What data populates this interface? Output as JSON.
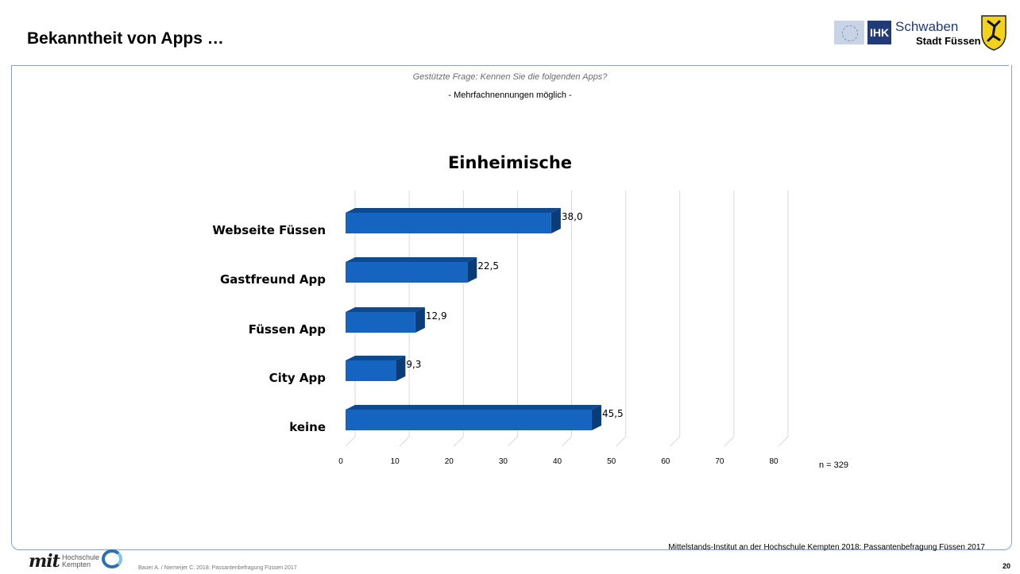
{
  "slide": {
    "title": "Bekanntheit von Apps …",
    "question": "Gestützte Frage: Kennen Sie die folgenden Apps?",
    "hint": "- Mehrfachnennungen möglich -",
    "n_note": "n = 329",
    "source": "Mittelstands-Institut an der Hochschule Kempten 2018: Passantenbefragung Füssen 2017",
    "author": "Bauer A. / Niemeijer C. 2018: Passantenbefragung Füssen 2017",
    "page_number": "20"
  },
  "logos": {
    "ihk": "IHK",
    "schwaben": "Schwaben",
    "stadt": "Stadt Füssen",
    "mit": "mit",
    "hochschule_line1": "Hochschule",
    "hochschule_line2": "Kempten"
  },
  "colors": {
    "bar_front": "#1565c0",
    "bar_top": "#0d4a8f",
    "bar_side": "#0a3d78",
    "grid": "#d9d9d9",
    "frame": "#8aa0c8"
  },
  "chart_data": {
    "type": "bar",
    "orientation": "horizontal",
    "title": "Einheimische",
    "categories": [
      "Webseite Füssen",
      "Gastfreund App",
      "Füssen App",
      "City App",
      "keine"
    ],
    "values": [
      38.0,
      22.5,
      12.9,
      9.3,
      45.5
    ],
    "value_labels": [
      "38,0",
      "22,5",
      "12,9",
      "9,3",
      "45,5"
    ],
    "xlim": [
      0,
      80
    ],
    "x_ticks": [
      0,
      10,
      20,
      30,
      40,
      50,
      60,
      70,
      80
    ],
    "grid": true,
    "style": "3d"
  }
}
